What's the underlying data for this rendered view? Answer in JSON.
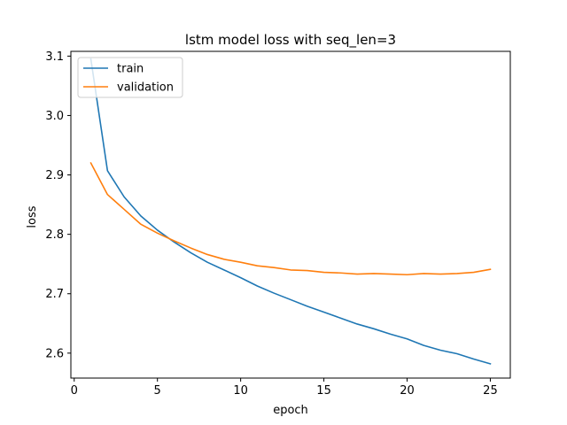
{
  "chart_data": {
    "type": "line",
    "title": "lstm model loss with seq_len=3",
    "xlabel": "epoch",
    "ylabel": "loss",
    "xlim": [
      -0.2,
      26.2
    ],
    "ylim": [
      2.558,
      3.108
    ],
    "xticks": [
      0,
      5,
      10,
      15,
      20,
      25
    ],
    "yticks": [
      2.6,
      2.7,
      2.8,
      2.9,
      3.0,
      3.1
    ],
    "xtick_labels": [
      "0",
      "5",
      "10",
      "15",
      "20",
      "25"
    ],
    "ytick_labels": [
      "2.6",
      "2.7",
      "2.8",
      "2.9",
      "3.0",
      "3.1"
    ],
    "grid": false,
    "legend_position": "top-left",
    "x": [
      1,
      2,
      3,
      4,
      5,
      6,
      7,
      8,
      9,
      10,
      11,
      12,
      13,
      14,
      15,
      16,
      17,
      18,
      19,
      20,
      21,
      22,
      23,
      24,
      25
    ],
    "series": [
      {
        "name": "train",
        "color": "#1f77b4",
        "values": [
          3.095,
          2.907,
          2.863,
          2.831,
          2.807,
          2.787,
          2.769,
          2.753,
          2.74,
          2.727,
          2.713,
          2.701,
          2.69,
          2.679,
          2.669,
          2.659,
          2.649,
          2.641,
          2.632,
          2.624,
          2.613,
          2.605,
          2.599,
          2.59,
          2.582
        ]
      },
      {
        "name": "validation",
        "color": "#ff7f0e",
        "values": [
          2.92,
          2.867,
          2.842,
          2.817,
          2.802,
          2.789,
          2.777,
          2.766,
          2.758,
          2.753,
          2.747,
          2.744,
          2.74,
          2.739,
          2.736,
          2.735,
          2.733,
          2.734,
          2.733,
          2.732,
          2.734,
          2.733,
          2.734,
          2.736,
          2.741
        ]
      }
    ]
  }
}
